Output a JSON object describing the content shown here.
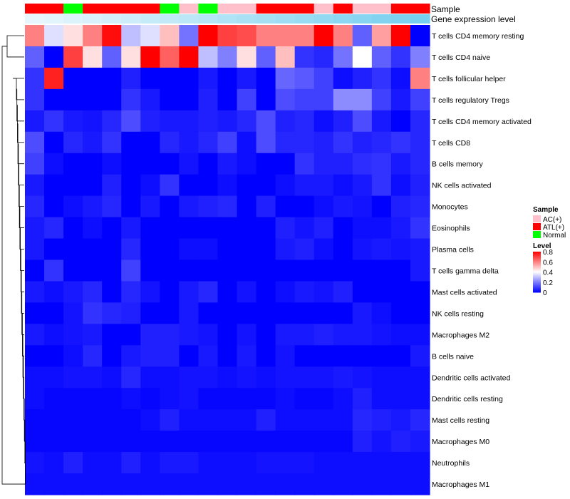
{
  "chart_data": {
    "type": "heatmap",
    "title": "",
    "annotation_labels": {
      "sample": "Sample",
      "expression": "Gene expression level"
    },
    "sample_track": [
      "ATL(+)",
      "ATL(+)",
      "Normal",
      "ATL(+)",
      "ATL(+)",
      "ATL(+)",
      "ATL(+)",
      "Normal",
      "AC(+)",
      "Normal",
      "AC(+)",
      "AC(+)",
      "ATL(+)",
      "ATL(+)",
      "ATL(+)",
      "AC(+)",
      "ATL(+)",
      "AC(+)",
      "AC(+)",
      "ATL(+)",
      "ATL(+)"
    ],
    "expression_track": [
      0.02,
      0.05,
      0.08,
      0.12,
      0.16,
      0.2,
      0.24,
      0.28,
      0.32,
      0.36,
      0.4,
      0.44,
      0.48,
      0.52,
      0.56,
      0.6,
      0.64,
      0.68,
      0.72,
      0.76,
      0.8
    ],
    "rows": [
      "T cells CD4 memory resting",
      "T cells CD4 naive",
      "T cells follicular helper",
      "T cells regulatory  Tregs",
      "T cells CD4 memory activated",
      "T cells CD8",
      "B cells memory",
      "NK cells activated",
      "Monocytes",
      "Eosinophils",
      "Plasma cells",
      "T cells gamma delta",
      "Mast cells activated",
      "NK cells resting",
      "Macrophages M2",
      "B cells naive",
      "Dendritic cells activated",
      "Dendritic cells resting",
      "Mast cells resting",
      "Macrophages M0",
      "Neutrophils",
      "Macrophages M1"
    ],
    "values": [
      [
        0.6,
        0.35,
        0.45,
        0.6,
        0.78,
        0.3,
        0.35,
        0.5,
        0.18,
        0.8,
        0.7,
        0.68,
        0.6,
        0.6,
        0.6,
        0.8,
        0.6,
        0.15,
        0.55,
        0.8,
        0.0
      ],
      [
        0.15,
        0.0,
        0.7,
        0.45,
        0.15,
        0.45,
        0.8,
        0.65,
        0.8,
        0.3,
        0.2,
        0.45,
        0.15,
        0.5,
        0.08,
        0.06,
        0.18,
        0.4,
        0.15,
        0.08,
        0.2
      ],
      [
        0.08,
        0.75,
        0.0,
        0.0,
        0.0,
        0.05,
        0.0,
        0.0,
        0.0,
        0.04,
        0.0,
        0.04,
        0.0,
        0.16,
        0.14,
        0.1,
        0.02,
        0.05,
        0.08,
        0.02,
        0.6
      ],
      [
        0.08,
        0.0,
        0.0,
        0.0,
        0.0,
        0.08,
        0.04,
        0.0,
        0.0,
        0.05,
        0.0,
        0.1,
        0.0,
        0.12,
        0.1,
        0.1,
        0.22,
        0.22,
        0.1,
        0.04,
        0.1
      ],
      [
        0.04,
        0.08,
        0.04,
        0.03,
        0.06,
        0.12,
        0.05,
        0.04,
        0.04,
        0.05,
        0.04,
        0.06,
        0.12,
        0.05,
        0.06,
        0.02,
        0.05,
        0.12,
        0.04,
        0.0,
        0.06
      ],
      [
        0.12,
        0.0,
        0.06,
        0.04,
        0.08,
        0.0,
        0.0,
        0.06,
        0.04,
        0.06,
        0.1,
        0.02,
        0.12,
        0.06,
        0.06,
        0.05,
        0.08,
        0.05,
        0.06,
        0.08,
        0.06
      ],
      [
        0.1,
        0.02,
        0.0,
        0.0,
        0.02,
        0.0,
        0.0,
        0.0,
        0.03,
        0.0,
        0.04,
        0.02,
        0.0,
        0.0,
        0.08,
        0.05,
        0.05,
        0.07,
        0.08,
        0.04,
        0.06
      ],
      [
        0.04,
        0.0,
        0.0,
        0.0,
        0.05,
        0.0,
        0.02,
        0.08,
        0.0,
        0.0,
        0.02,
        0.0,
        0.0,
        0.02,
        0.04,
        0.04,
        0.02,
        0.04,
        0.08,
        0.02,
        0.05
      ],
      [
        0.06,
        0.0,
        0.02,
        0.04,
        0.06,
        0.0,
        0.04,
        0.0,
        0.04,
        0.05,
        0.06,
        0.0,
        0.05,
        0.0,
        0.0,
        0.02,
        0.04,
        0.03,
        0.0,
        0.05,
        0.06
      ],
      [
        0.04,
        0.06,
        0.0,
        0.02,
        0.0,
        0.04,
        0.0,
        0.0,
        0.0,
        0.0,
        0.0,
        0.0,
        0.0,
        0.05,
        0.03,
        0.05,
        0.0,
        0.02,
        0.02,
        0.04,
        0.08
      ],
      [
        0.04,
        0.0,
        0.0,
        0.0,
        0.0,
        0.06,
        0.0,
        0.0,
        0.02,
        0.02,
        0.0,
        0.0,
        0.0,
        0.04,
        0.05,
        0.02,
        0.0,
        0.03,
        0.04,
        0.03,
        0.04
      ],
      [
        0.0,
        0.08,
        0.0,
        0.0,
        0.0,
        0.1,
        0.0,
        0.0,
        0.0,
        0.0,
        0.0,
        0.0,
        0.0,
        0.0,
        0.0,
        0.0,
        0.0,
        0.0,
        0.0,
        0.0,
        0.04
      ],
      [
        0.04,
        0.02,
        0.04,
        0.06,
        0.0,
        0.06,
        0.03,
        0.0,
        0.04,
        0.06,
        0.0,
        0.03,
        0.0,
        0.02,
        0.04,
        0.03,
        0.05,
        0.0,
        0.0,
        0.0,
        0.0
      ],
      [
        0.0,
        0.0,
        0.03,
        0.08,
        0.06,
        0.05,
        0.0,
        0.0,
        0.04,
        0.0,
        0.0,
        0.0,
        0.0,
        0.0,
        0.0,
        0.0,
        0.0,
        0.04,
        0.02,
        0.0,
        0.0
      ],
      [
        0.04,
        0.02,
        0.03,
        0.04,
        0.0,
        0.0,
        0.05,
        0.05,
        0.04,
        0.03,
        0.0,
        0.03,
        0.0,
        0.04,
        0.04,
        0.05,
        0.04,
        0.04,
        0.03,
        0.02,
        0.02
      ],
      [
        0.0,
        0.0,
        0.02,
        0.06,
        0.0,
        0.04,
        0.05,
        0.05,
        0.0,
        0.04,
        0.0,
        0.04,
        0.0,
        0.03,
        0.0,
        0.0,
        0.0,
        0.0,
        0.0,
        0.0,
        0.04
      ],
      [
        0.02,
        0.02,
        0.03,
        0.03,
        0.02,
        0.06,
        0.02,
        0.02,
        0.03,
        0.03,
        0.02,
        0.03,
        0.02,
        0.03,
        0.03,
        0.03,
        0.04,
        0.03,
        0.02,
        0.02,
        0.02
      ],
      [
        0.02,
        0.01,
        0.01,
        0.01,
        0.01,
        0.02,
        0.01,
        0.02,
        0.03,
        0.01,
        0.01,
        0.01,
        0.01,
        0.02,
        0.01,
        0.01,
        0.02,
        0.05,
        0.02,
        0.02,
        0.02
      ],
      [
        0.01,
        0.01,
        0.01,
        0.01,
        0.01,
        0.01,
        0.02,
        0.05,
        0.02,
        0.02,
        0.02,
        0.02,
        0.05,
        0.02,
        0.02,
        0.02,
        0.02,
        0.06,
        0.05,
        0.04,
        0.06
      ],
      [
        0.01,
        0.01,
        0.01,
        0.01,
        0.01,
        0.01,
        0.01,
        0.01,
        0.01,
        0.01,
        0.01,
        0.01,
        0.01,
        0.01,
        0.01,
        0.01,
        0.01,
        0.05,
        0.03,
        0.05,
        0.04
      ],
      [
        0.03,
        0.02,
        0.05,
        0.02,
        0.02,
        0.05,
        0.02,
        0.04,
        0.04,
        0.02,
        0.02,
        0.02,
        0.03,
        0.03,
        0.03,
        0.02,
        0.02,
        0.02,
        0.02,
        0.02,
        0.02
      ],
      [
        0.02,
        0.02,
        0.02,
        0.02,
        0.02,
        0.02,
        0.02,
        0.02,
        0.02,
        0.02,
        0.02,
        0.02,
        0.02,
        0.02,
        0.02,
        0.02,
        0.02,
        0.02,
        0.02,
        0.02,
        0.02
      ]
    ],
    "color_scale": {
      "low": "#0000ff",
      "mid": "#ffffff",
      "high": "#ff0000",
      "domain": [
        0,
        0.4,
        0.8
      ]
    },
    "sample_colors": {
      "AC(+)": "#ffc0cb",
      "ATL(+)": "#ff0000",
      "Normal": "#00ff00"
    },
    "expression_colors": {
      "low": "#e6f6fc",
      "high": "#76cfef"
    },
    "legend_sample": {
      "title": "Sample",
      "items": [
        "AC(+)",
        "ATL(+)",
        "Normal"
      ]
    },
    "legend_level": {
      "title": "Level",
      "ticks": [
        0.8,
        0.6,
        0.4,
        0.2,
        0
      ]
    },
    "dendrogram": "row clustering (left)"
  }
}
